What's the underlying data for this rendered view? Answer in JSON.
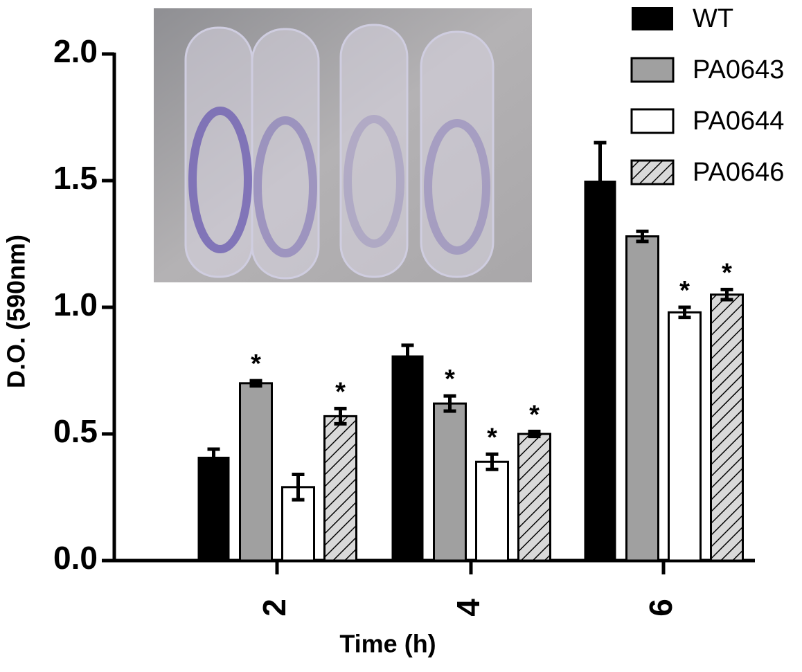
{
  "chart_data": {
    "type": "bar",
    "y_label": "D.O. (590nm)",
    "x_label": "Time (h)",
    "categories": [
      "2",
      "4",
      "6"
    ],
    "ylim": [
      0,
      2
    ],
    "yticks": [
      {
        "value": 0,
        "label": "0.0"
      },
      0.5,
      {
        "value": 1,
        "label": "1.0"
      },
      1.5,
      {
        "value": 2,
        "label": "2.0"
      }
    ],
    "legend": "top-right",
    "series": [
      {
        "name": "WT",
        "color": "#000000",
        "values": [
          0.41,
          0.81,
          1.5
        ],
        "errors": [
          0.03,
          0.04,
          0.15
        ],
        "markers": [
          null,
          null,
          null
        ]
      },
      {
        "name": "PA0643",
        "color": "#a0a0a0",
        "values": [
          0.7,
          0.62,
          1.28
        ],
        "errors": [
          0.01,
          0.03,
          0.02
        ],
        "markers": [
          "*",
          "*",
          null
        ]
      },
      {
        "name": "PA0644",
        "color": "#ffffff",
        "values": [
          0.29,
          0.39,
          0.98
        ],
        "errors": [
          0.05,
          0.03,
          0.02
        ],
        "markers": [
          null,
          "*",
          "*"
        ]
      },
      {
        "name": "PA0646",
        "color": "#d9d9d9",
        "pattern": "hatch",
        "values": [
          0.57,
          0.5,
          1.05
        ],
        "errors": [
          0.03,
          0.01,
          0.02
        ],
        "markers": [
          "*",
          "*",
          "*"
        ]
      }
    ]
  }
}
